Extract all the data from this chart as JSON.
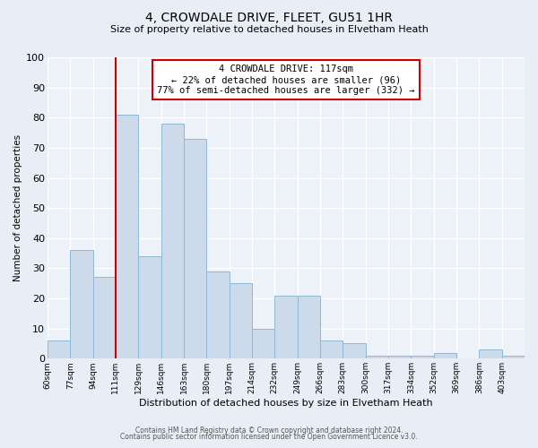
{
  "title": "4, CROWDALE DRIVE, FLEET, GU51 1HR",
  "subtitle": "Size of property relative to detached houses in Elvetham Heath",
  "xlabel": "Distribution of detached houses by size in Elvetham Heath",
  "ylabel": "Number of detached properties",
  "bin_labels": [
    "60sqm",
    "77sqm",
    "94sqm",
    "111sqm",
    "129sqm",
    "146sqm",
    "163sqm",
    "180sqm",
    "197sqm",
    "214sqm",
    "232sqm",
    "249sqm",
    "266sqm",
    "283sqm",
    "300sqm",
    "317sqm",
    "334sqm",
    "352sqm",
    "369sqm",
    "386sqm",
    "403sqm"
  ],
  "bar_heights": [
    6,
    36,
    27,
    81,
    34,
    78,
    73,
    29,
    25,
    10,
    21,
    21,
    6,
    5,
    1,
    1,
    1,
    2,
    0,
    3,
    1
  ],
  "bar_color": "#ccdaea",
  "bar_edge_color": "#8fb8d4",
  "bar_edge_width": 0.7,
  "vline_x_idx": 3,
  "vline_color": "#cc0000",
  "ylim": [
    0,
    100
  ],
  "yticks": [
    0,
    10,
    20,
    30,
    40,
    50,
    60,
    70,
    80,
    90,
    100
  ],
  "bg_color": "#e8eef5",
  "plot_bg_color": "#edf2f8",
  "grid_color": "#ffffff",
  "annotation_title": "4 CROWDALE DRIVE: 117sqm",
  "annotation_line1": "← 22% of detached houses are smaller (96)",
  "annotation_line2": "77% of semi-detached houses are larger (332) →",
  "annotation_box_color": "#ffffff",
  "annotation_box_edge": "#cc0000",
  "title_fontsize": 10,
  "subtitle_fontsize": 8,
  "footer1": "Contains HM Land Registry data © Crown copyright and database right 2024.",
  "footer2": "Contains public sector information licensed under the Open Government Licence v3.0."
}
